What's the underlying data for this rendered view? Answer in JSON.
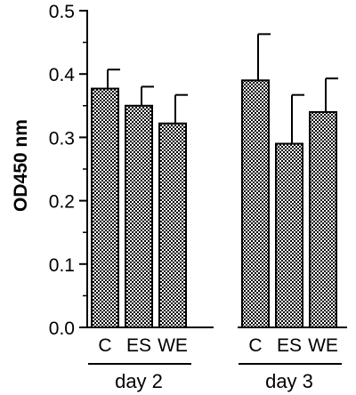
{
  "chart_data": {
    "type": "bar",
    "ylabel": "OD450 nm",
    "xlabel": "",
    "ylim": [
      0,
      0.5
    ],
    "yticks": [
      {
        "value": 0.0,
        "label": "0.0"
      },
      {
        "value": 0.1,
        "label": "0.1"
      },
      {
        "value": 0.2,
        "label": "0.2"
      },
      {
        "value": 0.3,
        "label": "0.3"
      },
      {
        "value": 0.4,
        "label": "0.4"
      },
      {
        "value": 0.5,
        "label": "0.5"
      }
    ],
    "groups": [
      {
        "label": "day 2",
        "bars": [
          {
            "category": "C",
            "value": 0.377,
            "error": 0.03
          },
          {
            "category": "ES",
            "value": 0.35,
            "error": 0.03
          },
          {
            "category": "WE",
            "value": 0.322,
            "error": 0.045
          }
        ]
      },
      {
        "label": "day 3",
        "bars": [
          {
            "category": "C",
            "value": 0.39,
            "error": 0.073
          },
          {
            "category": "ES",
            "value": 0.29,
            "error": 0.077
          },
          {
            "category": "WE",
            "value": 0.34,
            "error": 0.053
          }
        ]
      }
    ],
    "bar_fill": "#8f8f8f",
    "grid": false,
    "legend": "none"
  }
}
